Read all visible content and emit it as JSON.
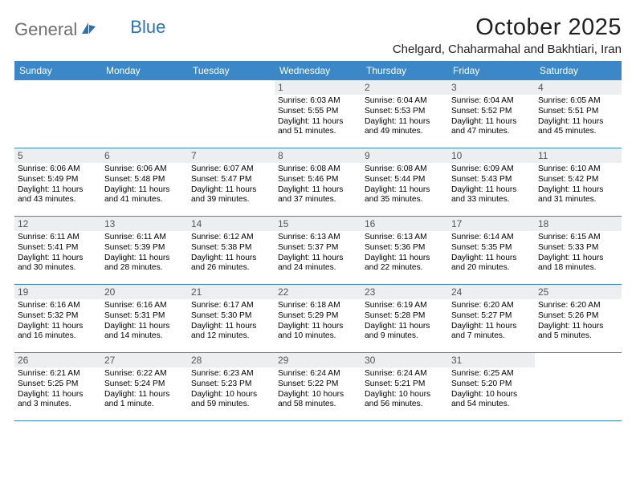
{
  "brand": {
    "general": "General",
    "blue": "Blue"
  },
  "title": "October 2025",
  "location": "Chelgard, Chaharmahal and Bakhtiari, Iran",
  "colors": {
    "header_bg": "#3b87c8",
    "header_text": "#ffffff",
    "daynum_bg": "#eceeef",
    "daynum_text": "#555555",
    "logo_general": "#6e6e6e",
    "logo_blue": "#2a73b8",
    "logo_icon": "#2a73b8",
    "border": "#3b87c8"
  },
  "day_names": [
    "Sunday",
    "Monday",
    "Tuesday",
    "Wednesday",
    "Thursday",
    "Friday",
    "Saturday"
  ],
  "weeks": [
    [
      {
        "num": "",
        "empty": true
      },
      {
        "num": "",
        "empty": true
      },
      {
        "num": "",
        "empty": true
      },
      {
        "num": "1",
        "sunrise": "Sunrise: 6:03 AM",
        "sunset": "Sunset: 5:55 PM",
        "daylight1": "Daylight: 11 hours",
        "daylight2": "and 51 minutes."
      },
      {
        "num": "2",
        "sunrise": "Sunrise: 6:04 AM",
        "sunset": "Sunset: 5:53 PM",
        "daylight1": "Daylight: 11 hours",
        "daylight2": "and 49 minutes."
      },
      {
        "num": "3",
        "sunrise": "Sunrise: 6:04 AM",
        "sunset": "Sunset: 5:52 PM",
        "daylight1": "Daylight: 11 hours",
        "daylight2": "and 47 minutes."
      },
      {
        "num": "4",
        "sunrise": "Sunrise: 6:05 AM",
        "sunset": "Sunset: 5:51 PM",
        "daylight1": "Daylight: 11 hours",
        "daylight2": "and 45 minutes."
      }
    ],
    [
      {
        "num": "5",
        "sunrise": "Sunrise: 6:06 AM",
        "sunset": "Sunset: 5:49 PM",
        "daylight1": "Daylight: 11 hours",
        "daylight2": "and 43 minutes."
      },
      {
        "num": "6",
        "sunrise": "Sunrise: 6:06 AM",
        "sunset": "Sunset: 5:48 PM",
        "daylight1": "Daylight: 11 hours",
        "daylight2": "and 41 minutes."
      },
      {
        "num": "7",
        "sunrise": "Sunrise: 6:07 AM",
        "sunset": "Sunset: 5:47 PM",
        "daylight1": "Daylight: 11 hours",
        "daylight2": "and 39 minutes."
      },
      {
        "num": "8",
        "sunrise": "Sunrise: 6:08 AM",
        "sunset": "Sunset: 5:46 PM",
        "daylight1": "Daylight: 11 hours",
        "daylight2": "and 37 minutes."
      },
      {
        "num": "9",
        "sunrise": "Sunrise: 6:08 AM",
        "sunset": "Sunset: 5:44 PM",
        "daylight1": "Daylight: 11 hours",
        "daylight2": "and 35 minutes."
      },
      {
        "num": "10",
        "sunrise": "Sunrise: 6:09 AM",
        "sunset": "Sunset: 5:43 PM",
        "daylight1": "Daylight: 11 hours",
        "daylight2": "and 33 minutes."
      },
      {
        "num": "11",
        "sunrise": "Sunrise: 6:10 AM",
        "sunset": "Sunset: 5:42 PM",
        "daylight1": "Daylight: 11 hours",
        "daylight2": "and 31 minutes."
      }
    ],
    [
      {
        "num": "12",
        "sunrise": "Sunrise: 6:11 AM",
        "sunset": "Sunset: 5:41 PM",
        "daylight1": "Daylight: 11 hours",
        "daylight2": "and 30 minutes."
      },
      {
        "num": "13",
        "sunrise": "Sunrise: 6:11 AM",
        "sunset": "Sunset: 5:39 PM",
        "daylight1": "Daylight: 11 hours",
        "daylight2": "and 28 minutes."
      },
      {
        "num": "14",
        "sunrise": "Sunrise: 6:12 AM",
        "sunset": "Sunset: 5:38 PM",
        "daylight1": "Daylight: 11 hours",
        "daylight2": "and 26 minutes."
      },
      {
        "num": "15",
        "sunrise": "Sunrise: 6:13 AM",
        "sunset": "Sunset: 5:37 PM",
        "daylight1": "Daylight: 11 hours",
        "daylight2": "and 24 minutes."
      },
      {
        "num": "16",
        "sunrise": "Sunrise: 6:13 AM",
        "sunset": "Sunset: 5:36 PM",
        "daylight1": "Daylight: 11 hours",
        "daylight2": "and 22 minutes."
      },
      {
        "num": "17",
        "sunrise": "Sunrise: 6:14 AM",
        "sunset": "Sunset: 5:35 PM",
        "daylight1": "Daylight: 11 hours",
        "daylight2": "and 20 minutes."
      },
      {
        "num": "18",
        "sunrise": "Sunrise: 6:15 AM",
        "sunset": "Sunset: 5:33 PM",
        "daylight1": "Daylight: 11 hours",
        "daylight2": "and 18 minutes."
      }
    ],
    [
      {
        "num": "19",
        "sunrise": "Sunrise: 6:16 AM",
        "sunset": "Sunset: 5:32 PM",
        "daylight1": "Daylight: 11 hours",
        "daylight2": "and 16 minutes."
      },
      {
        "num": "20",
        "sunrise": "Sunrise: 6:16 AM",
        "sunset": "Sunset: 5:31 PM",
        "daylight1": "Daylight: 11 hours",
        "daylight2": "and 14 minutes."
      },
      {
        "num": "21",
        "sunrise": "Sunrise: 6:17 AM",
        "sunset": "Sunset: 5:30 PM",
        "daylight1": "Daylight: 11 hours",
        "daylight2": "and 12 minutes."
      },
      {
        "num": "22",
        "sunrise": "Sunrise: 6:18 AM",
        "sunset": "Sunset: 5:29 PM",
        "daylight1": "Daylight: 11 hours",
        "daylight2": "and 10 minutes."
      },
      {
        "num": "23",
        "sunrise": "Sunrise: 6:19 AM",
        "sunset": "Sunset: 5:28 PM",
        "daylight1": "Daylight: 11 hours",
        "daylight2": "and 9 minutes."
      },
      {
        "num": "24",
        "sunrise": "Sunrise: 6:20 AM",
        "sunset": "Sunset: 5:27 PM",
        "daylight1": "Daylight: 11 hours",
        "daylight2": "and 7 minutes."
      },
      {
        "num": "25",
        "sunrise": "Sunrise: 6:20 AM",
        "sunset": "Sunset: 5:26 PM",
        "daylight1": "Daylight: 11 hours",
        "daylight2": "and 5 minutes."
      }
    ],
    [
      {
        "num": "26",
        "sunrise": "Sunrise: 6:21 AM",
        "sunset": "Sunset: 5:25 PM",
        "daylight1": "Daylight: 11 hours",
        "daylight2": "and 3 minutes."
      },
      {
        "num": "27",
        "sunrise": "Sunrise: 6:22 AM",
        "sunset": "Sunset: 5:24 PM",
        "daylight1": "Daylight: 11 hours",
        "daylight2": "and 1 minute."
      },
      {
        "num": "28",
        "sunrise": "Sunrise: 6:23 AM",
        "sunset": "Sunset: 5:23 PM",
        "daylight1": "Daylight: 10 hours",
        "daylight2": "and 59 minutes."
      },
      {
        "num": "29",
        "sunrise": "Sunrise: 6:24 AM",
        "sunset": "Sunset: 5:22 PM",
        "daylight1": "Daylight: 10 hours",
        "daylight2": "and 58 minutes."
      },
      {
        "num": "30",
        "sunrise": "Sunrise: 6:24 AM",
        "sunset": "Sunset: 5:21 PM",
        "daylight1": "Daylight: 10 hours",
        "daylight2": "and 56 minutes."
      },
      {
        "num": "31",
        "sunrise": "Sunrise: 6:25 AM",
        "sunset": "Sunset: 5:20 PM",
        "daylight1": "Daylight: 10 hours",
        "daylight2": "and 54 minutes."
      },
      {
        "num": "",
        "empty": true
      }
    ]
  ]
}
